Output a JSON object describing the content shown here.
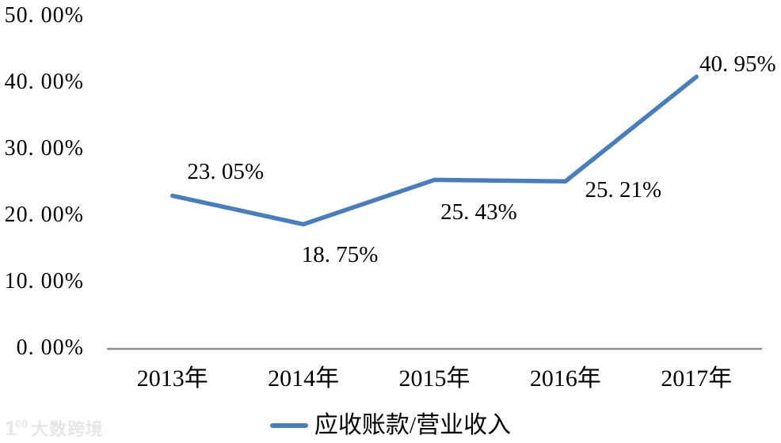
{
  "watermark": {
    "logo_text": "1",
    "logo_sup": "00",
    "brand_text": "大数跨境"
  },
  "chart_data": {
    "type": "line",
    "categories": [
      "2013年",
      "2014年",
      "2015年",
      "2016年",
      "2017年"
    ],
    "series": [
      {
        "name": "应收账款/营业收入",
        "values": [
          23.05,
          18.75,
          25.43,
          25.21,
          40.95
        ]
      }
    ],
    "data_labels": [
      "23. 05%",
      "18. 75%",
      "25. 43%",
      "25. 21%",
      "40. 95%"
    ],
    "y_ticks": [
      {
        "label": "0. 00%",
        "value": 0
      },
      {
        "label": "10. 00%",
        "value": 10
      },
      {
        "label": "20. 00%",
        "value": 20
      },
      {
        "label": "30. 00%",
        "value": 30
      },
      {
        "label": "40. 00%",
        "value": 40
      },
      {
        "label": "50. 00%",
        "value": 50
      }
    ],
    "ylim": [
      0,
      50
    ],
    "grid": false,
    "legend": {
      "position": "bottom",
      "entries": [
        "应收账款/营业收入"
      ]
    },
    "line_color": "#4A7EBB",
    "axis_color": "#8C8C8C",
    "text_color": "#000000"
  }
}
